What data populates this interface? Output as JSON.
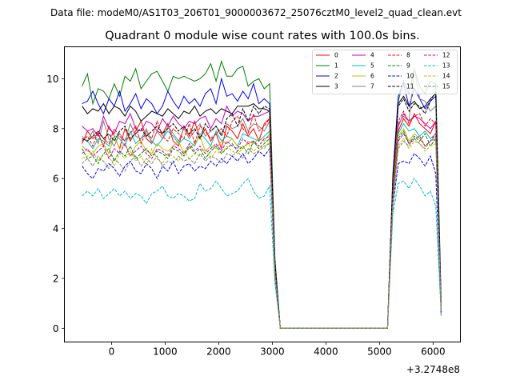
{
  "chart_data": {
    "type": "line",
    "suptitle": "Data file: modeM0/AS1T03_206T01_9000003672_25076cztM0_level2_quad_clean.evt",
    "title": "Quadrant 0 module wise count rates with 100.0s bins.",
    "xlabel": "",
    "ylabel": "",
    "x_offset_text": "+3.2748e8",
    "xlim": [
      -880,
      6510
    ],
    "ylim": [
      -0.55,
      11.28
    ],
    "xticks": [
      0,
      1000,
      2000,
      3000,
      4000,
      5000,
      6000
    ],
    "xtick_labels": [
      "0",
      "1000",
      "2000",
      "3000",
      "4000",
      "5000",
      "6000"
    ],
    "yticks": [
      0,
      2,
      4,
      6,
      8,
      10
    ],
    "ytick_labels": [
      "0",
      "2",
      "4",
      "6",
      "8",
      "10"
    ],
    "grid": false,
    "legend_position": "top-right",
    "x_start": -550,
    "x_step": 100,
    "series": [
      {
        "name": "0",
        "color": "#ff0000",
        "style": "solid",
        "values": [
          7.4,
          7.9,
          7.6,
          7.8,
          7.3,
          8.1,
          7.7,
          7.2,
          8.0,
          7.5,
          7.9,
          8.3,
          7.6,
          7.4,
          7.9,
          7.8,
          8.2,
          7.5,
          7.3,
          8.1,
          7.7,
          8.3,
          7.6,
          8.0,
          7.5,
          7.8,
          7.2,
          8.1,
          7.9,
          7.6,
          8.2,
          7.7,
          8.0,
          7.5,
          8.2,
          8.4,
          2.3,
          0,
          0,
          0,
          0,
          0,
          0,
          0,
          0,
          0,
          0,
          0,
          0,
          0,
          0,
          0,
          0,
          0,
          0,
          0,
          0,
          0,
          5.6,
          7.9,
          8.4,
          8.1,
          8.6,
          8.2,
          8.0,
          7.8,
          8.3,
          0.8
        ]
      },
      {
        "name": "1",
        "color": "#008000",
        "style": "solid",
        "values": [
          9.7,
          10.2,
          9.0,
          9.6,
          9.5,
          9.2,
          9.8,
          9.3,
          10.1,
          9.9,
          10.4,
          9.6,
          9.9,
          10.2,
          10.3,
          9.9,
          9.5,
          10.1,
          10.0,
          10.1,
          10.0,
          9.9,
          10.0,
          10.2,
          10.6,
          9.9,
          10.7,
          10.1,
          10.1,
          10.4,
          10.5,
          9.7,
          9.9,
          10.0,
          9.6,
          9.8,
          2.8,
          0,
          0,
          0,
          0,
          0,
          0,
          0,
          0,
          0,
          0,
          0,
          0,
          0,
          0,
          0,
          0,
          0,
          0,
          0,
          0,
          0,
          6.2,
          9.1,
          9.9,
          9.4,
          10.4,
          9.7,
          9.4,
          9.9,
          9.8,
          1.2
        ]
      },
      {
        "name": "2",
        "color": "#0000ff",
        "style": "solid",
        "values": [
          9.0,
          9.1,
          9.5,
          9.0,
          8.6,
          9.2,
          8.9,
          9.5,
          8.7,
          9.0,
          9.4,
          8.8,
          9.2,
          9.0,
          8.6,
          8.9,
          9.5,
          9.1,
          8.8,
          9.3,
          9.0,
          9.2,
          8.9,
          9.4,
          9.6,
          9.0,
          10.0,
          9.3,
          9.4,
          9.1,
          9.5,
          9.2,
          9.8,
          9.0,
          9.2,
          9.0,
          2.6,
          0,
          0,
          0,
          0,
          0,
          0,
          0,
          0,
          0,
          0,
          0,
          0,
          0,
          0,
          0,
          0,
          0,
          0,
          0,
          0,
          0,
          6.1,
          9.3,
          9.8,
          8.9,
          9.6,
          9.2,
          8.8,
          9.1,
          9.3,
          1.0
        ]
      },
      {
        "name": "3",
        "color": "#000000",
        "style": "solid",
        "values": [
          8.9,
          8.6,
          8.8,
          8.7,
          9.0,
          8.6,
          8.9,
          8.8,
          8.5,
          8.9,
          8.7,
          8.3,
          8.5,
          8.7,
          8.6,
          8.5,
          8.8,
          8.6,
          8.4,
          8.7,
          8.6,
          8.9,
          8.5,
          8.7,
          8.8,
          8.6,
          8.8,
          8.7,
          8.6,
          8.9,
          8.9,
          8.9,
          9.0,
          8.8,
          8.8,
          8.7,
          2.4,
          0,
          0,
          0,
          0,
          0,
          0,
          0,
          0,
          0,
          0,
          0,
          0,
          0,
          0,
          0,
          0,
          0,
          0,
          0,
          0,
          0,
          5.9,
          9.0,
          9.3,
          8.9,
          9.1,
          8.8,
          8.9,
          9.2,
          9.4,
          0.6
        ]
      },
      {
        "name": "4",
        "color": "#bf00bf",
        "style": "solid",
        "values": [
          8.1,
          7.9,
          8.0,
          7.7,
          8.5,
          8.0,
          7.8,
          8.3,
          8.2,
          8.6,
          8.0,
          7.9,
          8.3,
          8.2,
          7.9,
          8.4,
          8.1,
          8.5,
          8.2,
          8.0,
          8.3,
          8.2,
          8.4,
          8.5,
          8.0,
          8.4,
          8.2,
          8.9,
          8.5,
          8.7,
          8.6,
          8.3,
          8.5,
          8.5,
          8.6,
          8.7,
          2.5,
          0,
          0,
          0,
          0,
          0,
          0,
          0,
          0,
          0,
          0,
          0,
          0,
          0,
          0,
          0,
          0,
          0,
          0,
          0,
          0,
          0,
          5.7,
          8.1,
          8.6,
          8.3,
          8.5,
          8.4,
          8.2,
          8.0,
          8.3,
          0.9
        ]
      },
      {
        "name": "5",
        "color": "#00bfbf",
        "style": "solid",
        "values": [
          7.6,
          7.5,
          7.2,
          7.6,
          7.5,
          7.3,
          7.7,
          7.6,
          7.3,
          7.9,
          7.4,
          7.6,
          7.8,
          7.5,
          7.3,
          7.6,
          7.9,
          7.7,
          7.4,
          7.6,
          7.5,
          7.3,
          7.8,
          7.6,
          7.3,
          7.9,
          7.5,
          7.7,
          7.6,
          7.3,
          7.8,
          7.7,
          7.6,
          7.5,
          7.7,
          7.9,
          2.2,
          0,
          0,
          0,
          0,
          0,
          0,
          0,
          0,
          0,
          0,
          0,
          0,
          0,
          0,
          0,
          0,
          0,
          0,
          0,
          0,
          0,
          5.5,
          7.8,
          8.2,
          7.9,
          8.0,
          7.7,
          7.9,
          7.6,
          7.8,
          0.7
        ]
      },
      {
        "name": "6",
        "color": "#bfbf00",
        "style": "solid",
        "values": [
          7.3,
          7.1,
          7.0,
          7.3,
          7.4,
          7.0,
          7.7,
          7.2,
          7.4,
          6.9,
          7.3,
          7.5,
          7.1,
          7.0,
          7.4,
          7.2,
          7.1,
          7.3,
          7.5,
          7.0,
          7.2,
          7.4,
          7.7,
          7.1,
          7.3,
          7.2,
          7.5,
          7.4,
          7.6,
          7.3,
          7.2,
          7.5,
          7.4,
          7.6,
          7.5,
          7.8,
          2.1,
          0,
          0,
          0,
          0,
          0,
          0,
          0,
          0,
          0,
          0,
          0,
          0,
          0,
          0,
          0,
          0,
          0,
          0,
          0,
          0,
          0,
          5.4,
          7.7,
          8.0,
          7.5,
          7.8,
          7.6,
          7.3,
          7.5,
          7.7,
          0.8
        ]
      },
      {
        "name": "7",
        "color": "#808080",
        "style": "solid",
        "values": [
          7.7,
          7.5,
          7.9,
          7.4,
          8.3,
          7.6,
          7.3,
          7.8,
          7.5,
          8.2,
          7.7,
          7.6,
          8.0,
          7.4,
          7.9,
          7.6,
          8.1,
          7.8,
          7.5,
          8.0,
          7.6,
          7.9,
          8.2,
          7.7,
          7.9,
          8.1,
          7.8,
          8.2,
          8.0,
          8.1,
          8.4,
          7.9,
          8.2,
          8.1,
          7.9,
          8.3,
          2.4,
          0,
          0,
          0,
          0,
          0,
          0,
          0,
          0,
          0,
          0,
          0,
          0,
          0,
          0,
          0,
          0,
          0,
          0,
          0,
          0,
          0,
          5.8,
          8.2,
          8.5,
          8.3,
          10.4,
          9.2,
          9.1,
          8.7,
          8.9,
          0.5
        ]
      },
      {
        "name": "8",
        "color": "#ff0000",
        "style": "dashed",
        "values": [
          7.5,
          7.7,
          7.3,
          7.9,
          7.6,
          7.4,
          8.0,
          7.7,
          7.5,
          7.8,
          8.1,
          7.4,
          7.9,
          7.6,
          8.3,
          7.7,
          7.5,
          8.0,
          7.8,
          7.6,
          8.2,
          7.4,
          8.1,
          7.9,
          7.6,
          7.8,
          8.0,
          7.7,
          8.3,
          8.5,
          8.0,
          7.8,
          8.6,
          7.9,
          8.1,
          8.4,
          2.5,
          0,
          0,
          0,
          0,
          0,
          0,
          0,
          0,
          0,
          0,
          0,
          0,
          0,
          0,
          0,
          0,
          0,
          0,
          0,
          0,
          0,
          5.6,
          8.3,
          8.7,
          8.2,
          8.5,
          8.6,
          8.1,
          8.4,
          8.2,
          0.9
        ]
      },
      {
        "name": "9",
        "color": "#008000",
        "style": "dashed",
        "values": [
          7.2,
          6.8,
          6.9,
          6.6,
          7.0,
          7.2,
          6.7,
          7.1,
          6.9,
          7.3,
          6.8,
          7.0,
          7.2,
          6.9,
          7.1,
          7.0,
          6.8,
          7.2,
          7.1,
          6.9,
          7.3,
          7.0,
          7.2,
          6.8,
          7.1,
          7.3,
          7.0,
          7.2,
          7.4,
          7.1,
          7.3,
          7.0,
          7.5,
          7.2,
          7.4,
          7.6,
          2.3,
          0,
          0,
          0,
          0,
          0,
          0,
          0,
          0,
          0,
          0,
          0,
          0,
          0,
          0,
          0,
          0,
          0,
          0,
          0,
          0,
          0,
          5.3,
          7.6,
          7.9,
          7.4,
          7.7,
          7.5,
          7.8,
          7.3,
          7.6,
          0.7
        ]
      },
      {
        "name": "10",
        "color": "#0000ff",
        "style": "dashed",
        "values": [
          6.5,
          6.2,
          6.0,
          6.4,
          6.3,
          6.6,
          6.4,
          6.1,
          6.5,
          6.7,
          6.3,
          6.2,
          6.6,
          6.4,
          6.0,
          6.5,
          6.3,
          6.7,
          6.2,
          6.5,
          6.6,
          6.3,
          6.5,
          6.4,
          6.7,
          6.5,
          6.8,
          6.6,
          6.9,
          6.7,
          7.0,
          6.6,
          6.8,
          7.1,
          6.9,
          7.2,
          2.0,
          0,
          0,
          0,
          0,
          0,
          0,
          0,
          0,
          0,
          0,
          0,
          0,
          0,
          0,
          0,
          0,
          0,
          0,
          0,
          0,
          0,
          4.9,
          6.6,
          6.7,
          6.6,
          7.0,
          6.8,
          6.5,
          6.9,
          6.2,
          0.6
        ]
      },
      {
        "name": "11",
        "color": "#000000",
        "style": "dashed",
        "values": [
          7.6,
          7.5,
          7.7,
          7.9,
          7.6,
          7.8,
          7.5,
          7.9,
          8.1,
          7.6,
          7.8,
          8.0,
          7.7,
          7.9,
          8.1,
          7.8,
          8.0,
          8.2,
          7.9,
          8.1,
          7.8,
          8.0,
          7.6,
          8.2,
          7.9,
          8.1,
          7.7,
          8.4,
          8.6,
          8.1,
          8.8,
          8.3,
          8.9,
          8.6,
          8.9,
          8.8,
          2.6,
          0,
          0,
          0,
          0,
          0,
          0,
          0,
          0,
          0,
          0,
          0,
          0,
          0,
          0,
          0,
          0,
          0,
          0,
          0,
          0,
          0,
          6.0,
          8.9,
          9.2,
          8.7,
          9.0,
          8.9,
          8.6,
          9.1,
          9.5,
          0.7
        ]
      },
      {
        "name": "12",
        "color": "#bf00bf",
        "style": "dashed",
        "values": [
          7.0,
          7.2,
          6.9,
          7.1,
          7.3,
          6.8,
          7.2,
          7.0,
          7.4,
          6.9,
          7.1,
          7.3,
          7.0,
          6.8,
          7.2,
          7.1,
          6.9,
          7.3,
          7.2,
          7.0,
          7.4,
          7.1,
          7.3,
          7.0,
          7.2,
          7.4,
          7.1,
          7.5,
          7.3,
          7.2,
          7.6,
          7.4,
          7.5,
          7.3,
          7.6,
          7.7,
          2.2,
          0,
          0,
          0,
          0,
          0,
          0,
          0,
          0,
          0,
          0,
          0,
          0,
          0,
          0,
          0,
          0,
          0,
          0,
          0,
          0,
          0,
          5.2,
          7.5,
          7.8,
          7.4,
          7.6,
          7.7,
          7.3,
          7.5,
          7.8,
          0.8
        ]
      },
      {
        "name": "13",
        "color": "#00bfbf",
        "style": "dashed",
        "values": [
          5.3,
          5.5,
          5.3,
          5.6,
          5.2,
          5.4,
          5.6,
          5.3,
          5.5,
          5.2,
          5.4,
          5.3,
          5.0,
          5.4,
          5.5,
          5.7,
          5.3,
          5.2,
          5.4,
          5.3,
          5.1,
          5.2,
          5.8,
          5.5,
          5.6,
          5.9,
          5.6,
          5.3,
          5.4,
          5.5,
          5.8,
          6.0,
          5.5,
          5.2,
          5.3,
          5.7,
          1.8,
          0,
          0,
          0,
          0,
          0,
          0,
          0,
          0,
          0,
          0,
          0,
          0,
          0,
          0,
          0,
          0,
          0,
          0,
          0,
          0,
          0,
          4.6,
          5.8,
          5.9,
          5.6,
          6.0,
          5.7,
          5.3,
          5.5,
          4.9,
          0.6
        ]
      },
      {
        "name": "14",
        "color": "#bfbf00",
        "style": "dashed",
        "values": [
          6.8,
          6.9,
          7.1,
          6.7,
          7.0,
          6.9,
          6.5,
          7.0,
          6.8,
          7.1,
          6.7,
          6.9,
          6.5,
          7.2,
          6.8,
          6.6,
          7.0,
          6.9,
          6.7,
          7.1,
          6.8,
          7.0,
          6.9,
          7.2,
          6.8,
          7.1,
          7.0,
          7.3,
          7.1,
          7.0,
          7.2,
          7.4,
          7.1,
          7.3,
          7.2,
          7.5,
          2.1,
          0,
          0,
          0,
          0,
          0,
          0,
          0,
          0,
          0,
          0,
          0,
          0,
          0,
          0,
          0,
          0,
          0,
          0,
          0,
          0,
          0,
          5.1,
          7.3,
          7.6,
          7.2,
          7.5,
          7.4,
          7.1,
          7.3,
          7.4,
          0.7
        ]
      },
      {
        "name": "15",
        "color": "#808080",
        "style": "dashed",
        "values": [
          6.6,
          6.8,
          6.5,
          6.9,
          6.7,
          6.4,
          6.8,
          6.6,
          6.3,
          6.7,
          6.9,
          6.5,
          6.8,
          6.6,
          6.9,
          6.5,
          6.7,
          6.6,
          6.9,
          6.7,
          6.8,
          6.6,
          7.0,
          6.7,
          6.9,
          6.8,
          6.6,
          7.0,
          6.9,
          7.1,
          6.8,
          7.2,
          7.0,
          7.1,
          7.3,
          7.4,
          2.2,
          0,
          0,
          0,
          0,
          0,
          0,
          0,
          0,
          0,
          0,
          0,
          0,
          0,
          0,
          0,
          0,
          0,
          0,
          0,
          0,
          0,
          5.0,
          7.2,
          7.5,
          7.3,
          7.6,
          7.4,
          7.2,
          7.5,
          7.6,
          0.6
        ]
      }
    ]
  }
}
